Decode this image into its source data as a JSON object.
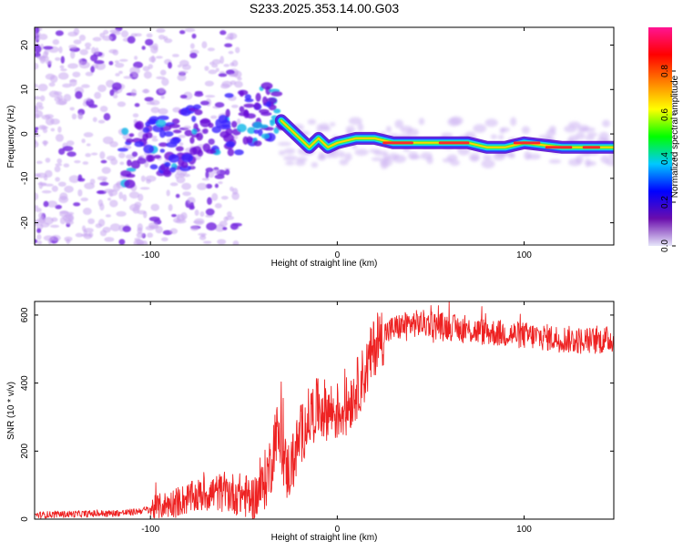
{
  "title": "S233.2025.353.14.00.G03",
  "chart_data": [
    {
      "type": "heatmap",
      "panel": "spectrogram",
      "xlabel": "Height of straight line (km)",
      "ylabel": "Frequency (Hz)",
      "xlim": [
        -162,
        148
      ],
      "ylim": [
        -25,
        24
      ],
      "xticks": [
        -100,
        0,
        100
      ],
      "yticks": [
        -20,
        -10,
        0,
        10,
        20
      ],
      "colorbar": {
        "label": "Normalized spectral amplitude",
        "range": [
          0.0,
          1.0
        ],
        "ticks": [
          "0.0",
          "0.2",
          "0.4",
          "0.6",
          "0.8"
        ],
        "colors": [
          "#e6e6fa",
          "#6a0dad",
          "#0000ff",
          "#00c8ff",
          "#00ff00",
          "#ffff00",
          "#ff8000",
          "#ff0000",
          "#ff1493"
        ]
      },
      "ridge": [
        {
          "x": -30,
          "f": 3
        },
        {
          "x": -20,
          "f": -1
        },
        {
          "x": -15,
          "f": -3
        },
        {
          "x": -10,
          "f": -1
        },
        {
          "x": -5,
          "f": -3
        },
        {
          "x": 0,
          "f": -2
        },
        {
          "x": 10,
          "f": -1
        },
        {
          "x": 20,
          "f": -1
        },
        {
          "x": 30,
          "f": -2
        },
        {
          "x": 50,
          "f": -2
        },
        {
          "x": 70,
          "f": -2
        },
        {
          "x": 80,
          "f": -3
        },
        {
          "x": 90,
          "f": -3
        },
        {
          "x": 100,
          "f": -2
        },
        {
          "x": 120,
          "f": -3
        },
        {
          "x": 148,
          "f": -3
        }
      ]
    },
    {
      "type": "line",
      "panel": "snr",
      "xlabel": "Height of straight line (km)",
      "ylabel": "SNR (10 * v/v)",
      "xlim": [
        -162,
        148
      ],
      "ylim": [
        0,
        640
      ],
      "xticks": [
        -100,
        0,
        100
      ],
      "yticks": [
        0,
        200,
        400,
        600
      ],
      "color": "#ee2222",
      "series": [
        {
          "name": "SNR",
          "x": [
            -162,
            -140,
            -120,
            -110,
            -100,
            -90,
            -80,
            -70,
            -60,
            -50,
            -45,
            -40,
            -35,
            -33,
            -30,
            -27,
            -25,
            -20,
            -15,
            -10,
            -5,
            0,
            5,
            10,
            15,
            20,
            25,
            30,
            40,
            50,
            60,
            70,
            80,
            90,
            100,
            110,
            120,
            130,
            140,
            148
          ],
          "y": [
            12,
            15,
            17,
            20,
            30,
            45,
            60,
            75,
            80,
            70,
            60,
            95,
            170,
            265,
            210,
            140,
            150,
            240,
            300,
            330,
            320,
            315,
            330,
            380,
            430,
            510,
            545,
            560,
            575,
            575,
            565,
            555,
            550,
            545,
            540,
            535,
            530,
            525,
            525,
            530
          ]
        }
      ]
    }
  ]
}
